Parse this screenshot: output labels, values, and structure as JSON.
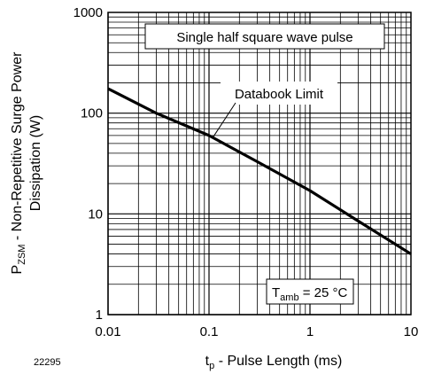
{
  "figure_id": "22295",
  "chart_data": {
    "type": "line",
    "x_scale": "log",
    "y_scale": "log",
    "xlim": [
      0.01,
      10
    ],
    "ylim": [
      1,
      1000
    ],
    "grid": true,
    "x_ticks": [
      "0.01",
      "0.1",
      "1",
      "10"
    ],
    "y_ticks": [
      "1",
      "10",
      "100",
      "1000"
    ],
    "xlabel": {
      "main": "t",
      "sub": "p",
      "rest": " - Pulse Length (ms)"
    },
    "ylabel": {
      "line1_main": "P",
      "line1_sub": "ZSM",
      "line1_rest": " - Non-Repetitive Surge Power",
      "line2": "Dissipation (W)"
    },
    "annotations": {
      "top_box": "Single half square wave pulse",
      "curve_label": "Databook Limit",
      "temp_main": "T",
      "temp_sub": "amb",
      "temp_rest": " = 25 °C"
    },
    "series": [
      {
        "x": [
          0.01,
          0.03,
          0.1,
          0.3,
          1,
          3,
          10
        ],
        "y": [
          175,
          100,
          60,
          33,
          17,
          8.5,
          4
        ]
      }
    ],
    "curve_label_target": {
      "x": 0.11,
      "y": 58
    }
  }
}
